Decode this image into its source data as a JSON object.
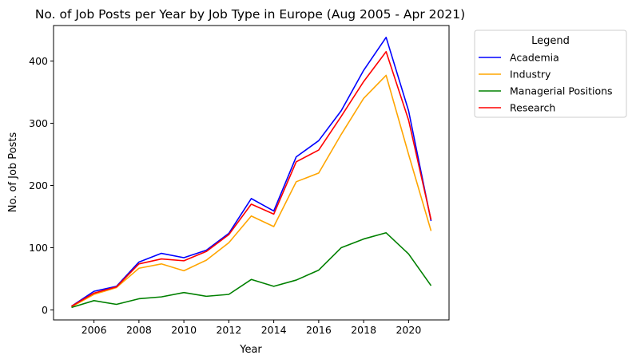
{
  "chart_data": {
    "type": "line",
    "title": "No. of Job Posts per Year by Job Type in Europe (Aug 2005 - Apr 2021)",
    "xlabel": "Year",
    "ylabel": "No. of Job Posts",
    "xlim": [
      2004.2,
      2021.8
    ],
    "ylim": [
      -16,
      457
    ],
    "x_ticks": [
      2006,
      2008,
      2010,
      2012,
      2014,
      2016,
      2018,
      2020
    ],
    "y_ticks": [
      0,
      100,
      200,
      300,
      400
    ],
    "grid": false,
    "legend": {
      "title": "Legend",
      "placement": "outside-top-right"
    },
    "x": [
      2005,
      2006,
      2007,
      2008,
      2009,
      2010,
      2011,
      2012,
      2013,
      2014,
      2015,
      2016,
      2017,
      2018,
      2019,
      2020,
      2021
    ],
    "series": [
      {
        "name": "Academia",
        "color": "#0000ff",
        "values": [
          6,
          30,
          38,
          77,
          91,
          84,
          96,
          123,
          179,
          159,
          246,
          272,
          320,
          385,
          438,
          320,
          143
        ]
      },
      {
        "name": "Industry",
        "color": "#ffa500",
        "values": [
          5,
          25,
          36,
          67,
          74,
          63,
          80,
          108,
          151,
          134,
          206,
          220,
          282,
          340,
          377,
          250,
          127
        ]
      },
      {
        "name": "Managerial Positions",
        "color": "#008000",
        "values": [
          4,
          15,
          9,
          18,
          21,
          28,
          22,
          25,
          49,
          38,
          48,
          64,
          100,
          114,
          124,
          90,
          39
        ]
      },
      {
        "name": "Research",
        "color": "#ff0000",
        "values": [
          6,
          27,
          37,
          74,
          82,
          79,
          94,
          121,
          170,
          154,
          238,
          257,
          311,
          367,
          415,
          305,
          145
        ]
      }
    ]
  }
}
